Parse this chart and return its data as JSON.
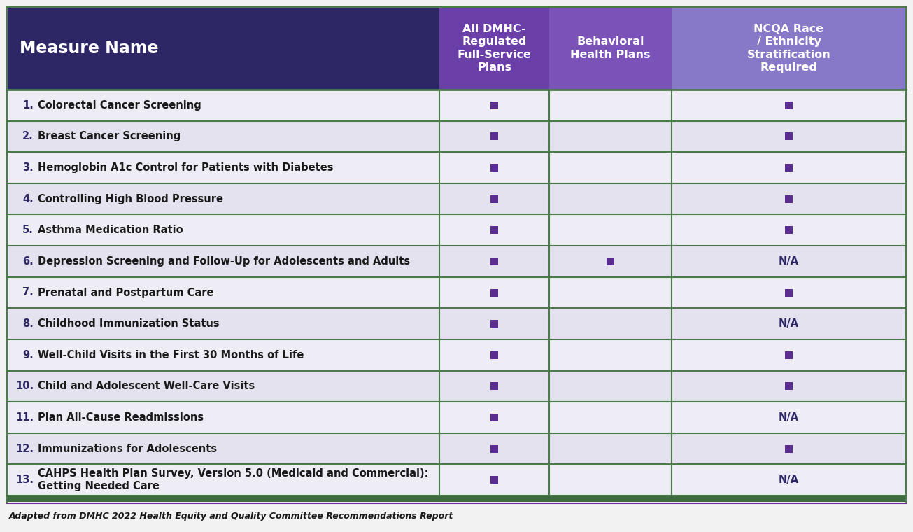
{
  "measures": [
    {
      "num": "1.",
      "name": "Colorectal Cancer Screening",
      "col1": "square",
      "col2": "",
      "col3": "square"
    },
    {
      "num": "2.",
      "name": "Breast Cancer Screening",
      "col1": "square",
      "col2": "",
      "col3": "square"
    },
    {
      "num": "3.",
      "name": "Hemoglobin A1c Control for Patients with Diabetes",
      "col1": "square",
      "col2": "",
      "col3": "square"
    },
    {
      "num": "4.",
      "name": "Controlling High Blood Pressure",
      "col1": "square",
      "col2": "",
      "col3": "square"
    },
    {
      "num": "5.",
      "name": "Asthma Medication Ratio",
      "col1": "square",
      "col2": "",
      "col3": "square"
    },
    {
      "num": "6.",
      "name": "Depression Screening and Follow-Up for Adolescents and Adults",
      "col1": "square",
      "col2": "square",
      "col3": "N/A"
    },
    {
      "num": "7.",
      "name": "Prenatal and Postpartum Care",
      "col1": "square",
      "col2": "",
      "col3": "square"
    },
    {
      "num": "8.",
      "name": "Childhood Immunization Status",
      "col1": "square",
      "col2": "",
      "col3": "N/A"
    },
    {
      "num": "9.",
      "name": "Well-Child Visits in the First 30 Months of Life",
      "col1": "square",
      "col2": "",
      "col3": "square"
    },
    {
      "num": "10.",
      "name": "Child and Adolescent Well-Care Visits",
      "col1": "square",
      "col2": "",
      "col3": "square"
    },
    {
      "num": "11.",
      "name": "Plan All-Cause Readmissions",
      "col1": "square",
      "col2": "",
      "col3": "N/A"
    },
    {
      "num": "12.",
      "name": "Immunizations for Adolescents",
      "col1": "square",
      "col2": "",
      "col3": "square"
    },
    {
      "num": "13.",
      "name": "CAHPS Health Plan Survey, Version 5.0 (Medicaid and Commercial):\nGetting Needed Care",
      "col1": "square",
      "col2": "",
      "col3": "N/A"
    }
  ],
  "header_name_color": "#2d2766",
  "header_col1_color": "#6b3fa8",
  "header_col2_color": "#7b52b8",
  "header_col3_color": "#8878c8",
  "header_text_color": "#ffffff",
  "row_bg_light": "#eeecf5",
  "row_bg_dark": "#e5e2ef",
  "border_green": "#4a7c4a",
  "square_color": "#5c2d91",
  "na_color": "#2d2766",
  "num_color": "#2d2766",
  "name_color": "#1a1a1a",
  "footer_text": "Adapted from DMHC 2022 Health Equity and Quality Committee Recommendations Report",
  "col1_header": "All DMHC-\nRegulated\nFull-Service\nPlans",
  "col2_header": "Behavioral\nHealth Plans",
  "col3_header": "NCQA Race\n/ Ethnicity\nStratification\nRequired",
  "name_header": "Measure Name",
  "fig_bg": "#f2f2f2"
}
